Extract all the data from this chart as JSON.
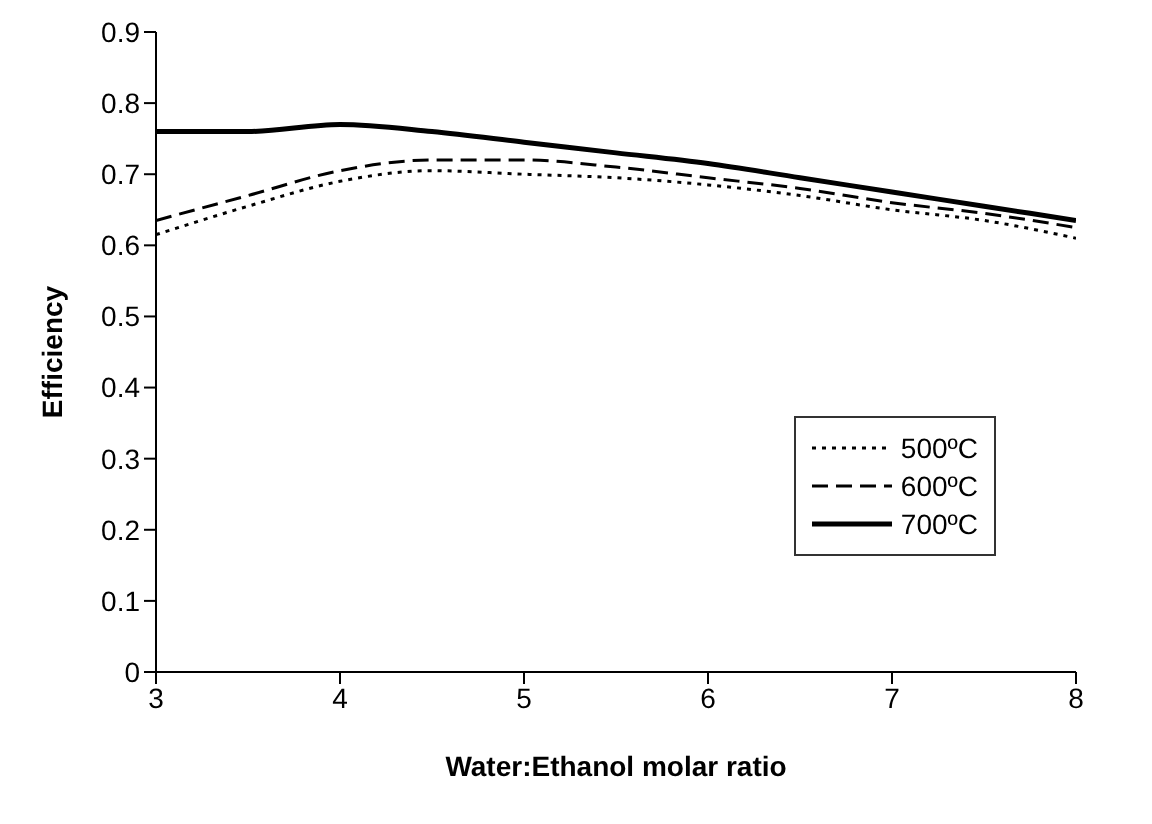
{
  "chart_data": {
    "type": "line",
    "xlabel": "Water:Ethanol molar ratio",
    "ylabel": "Efficiency",
    "x": [
      3,
      3.5,
      4,
      4.5,
      5,
      5.5,
      6,
      6.5,
      7,
      7.5,
      8
    ],
    "series": [
      {
        "name": "500ºC",
        "color": "#000000",
        "line_style": "dotted",
        "values": [
          0.615,
          0.655,
          0.69,
          0.705,
          0.7,
          0.695,
          0.685,
          0.67,
          0.65,
          0.635,
          0.61
        ]
      },
      {
        "name": "600ºC",
        "color": "#000000",
        "line_style": "dashed",
        "values": [
          0.635,
          0.67,
          0.705,
          0.72,
          0.72,
          0.71,
          0.695,
          0.68,
          0.66,
          0.645,
          0.625
        ]
      },
      {
        "name": "700ºC",
        "color": "#000000",
        "line_style": "solid",
        "values": [
          0.76,
          0.76,
          0.77,
          0.76,
          0.745,
          0.73,
          0.715,
          0.695,
          0.675,
          0.655,
          0.635
        ]
      }
    ],
    "xlim": [
      3,
      8
    ],
    "xticks": [
      3,
      4,
      5,
      6,
      7,
      8
    ],
    "ylim": [
      0,
      0.9
    ],
    "yticks": [
      0,
      0.1,
      0.2,
      0.3,
      0.4,
      0.5,
      0.6,
      0.7,
      0.8,
      0.9
    ],
    "grid": false,
    "legend": "right",
    "marker": "none"
  }
}
